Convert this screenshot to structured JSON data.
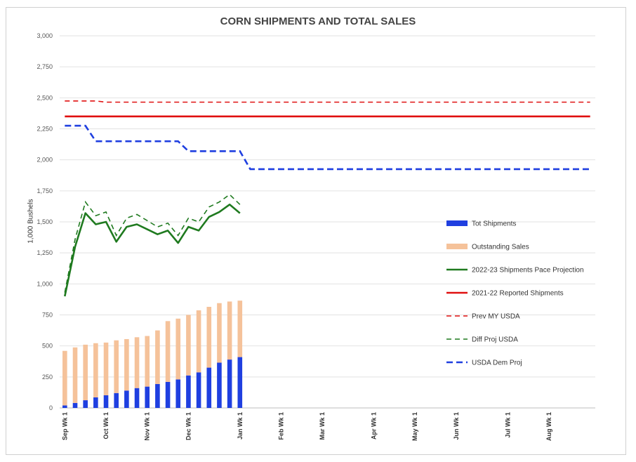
{
  "chart_data": {
    "type": "bar+line",
    "title": "CORN SHIPMENTS AND TOTAL SALES",
    "ylabel": "1,000 Bushels",
    "xlabel": "",
    "ylim": [
      0,
      3000
    ],
    "yticks": [
      0,
      250,
      500,
      750,
      1000,
      1250,
      1500,
      1750,
      2000,
      2250,
      2500,
      2750,
      3000
    ],
    "ytick_labels": [
      "0",
      "250",
      "500",
      "750",
      "1,000",
      "1,250",
      "1,500",
      "1,750",
      "2,000",
      "2,250",
      "2,500",
      "2,750",
      "3,000"
    ],
    "num_weeks": 52,
    "xtick_labels": [
      {
        "week": 0,
        "label": "Sep Wk 1"
      },
      {
        "week": 4,
        "label": "Oct Wk 1"
      },
      {
        "week": 8,
        "label": "Nov Wk 1"
      },
      {
        "week": 12,
        "label": "Dec Wk 1"
      },
      {
        "week": 17,
        "label": "Jan Wk 1"
      },
      {
        "week": 21,
        "label": "Feb Wk 1"
      },
      {
        "week": 25,
        "label": "Mar Wk 1"
      },
      {
        "week": 30,
        "label": "Apr Wk 1"
      },
      {
        "week": 34,
        "label": "May Wk 1"
      },
      {
        "week": 38,
        "label": "Jun Wk 1"
      },
      {
        "week": 43,
        "label": "Jul Wk 1"
      },
      {
        "week": 47,
        "label": "Aug Wk 1"
      }
    ],
    "series": [
      {
        "name": "Tot Shipments",
        "kind": "bar",
        "color": "#1f3fe0",
        "values": [
          20,
          40,
          62,
          85,
          102,
          120,
          140,
          160,
          172,
          193,
          210,
          230,
          262,
          287,
          325,
          365,
          390,
          410
        ]
      },
      {
        "name": "Outstanding Sales",
        "kind": "bar-stacked",
        "color": "#f5c29a",
        "values": [
          440,
          448,
          448,
          437,
          425,
          425,
          415,
          410,
          408,
          432,
          490,
          490,
          488,
          500,
          490,
          480,
          468,
          455
        ]
      },
      {
        "name": "2022-23 Shipments Pace Projection",
        "kind": "line",
        "color": "#1f7a1f",
        "dash": "solid",
        "values": [
          900,
          1300,
          1570,
          1480,
          1500,
          1340,
          1460,
          1480,
          1440,
          1400,
          1430,
          1330,
          1460,
          1430,
          1540,
          1580,
          1640,
          1570
        ]
      },
      {
        "name": "2021-22 Reported Shipments",
        "kind": "line",
        "color": "#e01010",
        "dash": "solid",
        "values_constant": 2350,
        "x_start": 0,
        "x_end": 51
      },
      {
        "name": "Prev MY USDA",
        "kind": "line",
        "color": "#e01010",
        "dash": "dashed",
        "steps": [
          [
            0,
            2475
          ],
          [
            3,
            2475
          ],
          [
            4,
            2465
          ],
          [
            51,
            2465
          ]
        ]
      },
      {
        "name": "Diff Proj USDA",
        "kind": "line",
        "color": "#1f7a1f",
        "dash": "dashed",
        "values": [
          930,
          1360,
          1660,
          1550,
          1580,
          1390,
          1530,
          1560,
          1510,
          1460,
          1490,
          1390,
          1530,
          1500,
          1620,
          1660,
          1720,
          1640
        ]
      },
      {
        "name": "USDA Dem Proj",
        "kind": "line",
        "color": "#1f3fe0",
        "dash": "dashed",
        "steps": [
          [
            0,
            2275
          ],
          [
            2,
            2275
          ],
          [
            3,
            2150
          ],
          [
            11,
            2150
          ],
          [
            12,
            2070
          ],
          [
            17,
            2070
          ],
          [
            18,
            1925
          ],
          [
            51,
            1925
          ]
        ]
      }
    ],
    "legend": [
      "Tot Shipments",
      "Outstanding Sales",
      "2022-23 Shipments Pace Projection",
      "2021-22 Reported Shipments",
      "Prev MY USDA",
      "Diff Proj USDA",
      "USDA Dem Proj"
    ],
    "legend_position": "right",
    "grid": true
  }
}
